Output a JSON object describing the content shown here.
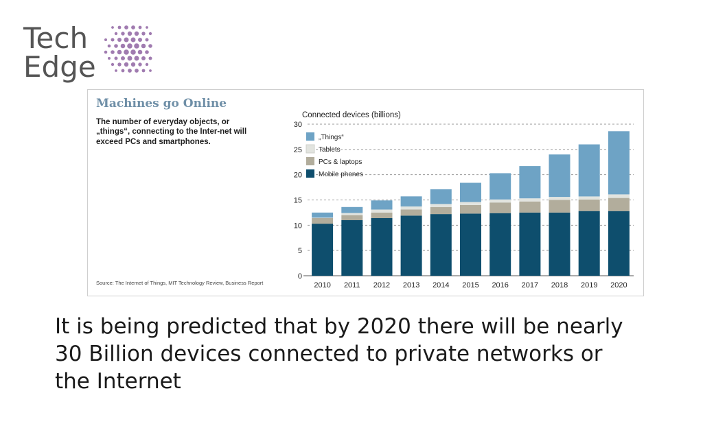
{
  "logo": {
    "line1": "Tech",
    "line2": "Edge",
    "dot_color": "#a07bb0"
  },
  "chart_data": {
    "type": "bar",
    "stacked": true,
    "title": "Machines go Online",
    "subtitle": "The number of everyday objects, or „things“, connecting to the Inter-net will exceed PCs and smartphones.",
    "ylabel": "Connected devices (billions)",
    "xlabel": "",
    "ylim": [
      0,
      30
    ],
    "yticks": [
      0,
      5,
      10,
      15,
      20,
      25,
      30
    ],
    "grid": true,
    "legend_position": "top-left",
    "categories": [
      "2010",
      "2011",
      "2012",
      "2013",
      "2014",
      "2015",
      "2016",
      "2017",
      "2018",
      "2019",
      "2020"
    ],
    "series": [
      {
        "name": "Mobile phones",
        "color": "#0e4e6d",
        "values": [
          10.3,
          11.0,
          11.4,
          11.9,
          12.2,
          12.3,
          12.4,
          12.5,
          12.5,
          12.8,
          12.8
        ]
      },
      {
        "name": "PCs & laptops",
        "color": "#b2ad9c",
        "values": [
          1.1,
          1.0,
          1.1,
          1.2,
          1.4,
          1.7,
          2.1,
          2.2,
          2.5,
          2.3,
          2.6
        ]
      },
      {
        "name": "Tablets",
        "color": "#e2e4df",
        "values": [
          0.1,
          0.4,
          0.6,
          0.6,
          0.6,
          0.6,
          0.6,
          0.6,
          0.6,
          0.6,
          0.7
        ]
      },
      {
        "name": "„Things“",
        "color": "#6ea3c5",
        "values": [
          1.0,
          1.2,
          1.8,
          2.0,
          2.9,
          3.8,
          5.2,
          6.4,
          8.4,
          10.3,
          12.5
        ]
      }
    ],
    "legend_order": [
      "„Things“",
      "Tablets",
      "PCs & laptops",
      "Mobile phones"
    ],
    "source": "Source: The Internet of Things, MIT Technology Review, Business Report"
  },
  "caption_lines": [
    "It is being predicted that by 2020 there will be nearly",
    "30 Billion devices connected to private networks or",
    "the Internet"
  ],
  "colors": {
    "grid": "#9a9a9a",
    "axis_text": "#222222",
    "title": "#6f8fa7"
  }
}
